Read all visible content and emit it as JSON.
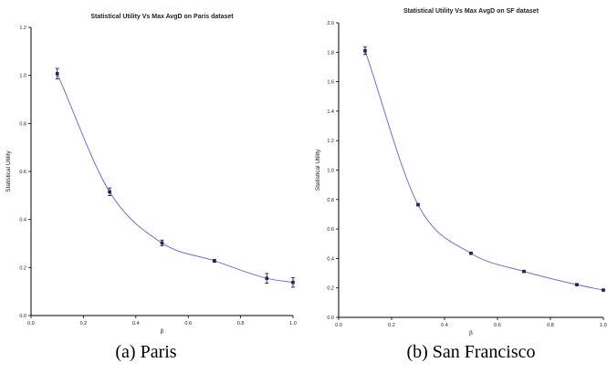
{
  "chart_data": [
    {
      "type": "scatter",
      "title": "Statistical Utility Vs Max AvgD on Paris dataset",
      "xlabel": "β",
      "ylabel": "Statistical Utility",
      "xlim": [
        0,
        1
      ],
      "ylim": [
        0,
        1.2
      ],
      "xticks": [
        0.0,
        0.2,
        0.4,
        0.6,
        0.8,
        1.0
      ],
      "xtick_labels": [
        "0.0",
        "0.2",
        "0.4",
        "0.6",
        "0.8",
        "1.0"
      ],
      "yticks": [
        0.0,
        0.2,
        0.4,
        0.6,
        0.8,
        1.0,
        1.2
      ],
      "ytick_labels": [
        "0.0",
        "0.2",
        "0.4",
        "0.6",
        "0.8",
        "1.0",
        "1.2"
      ],
      "grid": false,
      "legend": "none",
      "caption": "(a) Paris",
      "series": [
        {
          "x": [
            0.1,
            0.3,
            0.5,
            0.7,
            0.9,
            1.0
          ],
          "y": [
            1.007,
            0.515,
            0.302,
            0.228,
            0.155,
            0.138
          ],
          "err": [
            0.022,
            0.016,
            0.012,
            0.006,
            0.02,
            0.02
          ],
          "color": "#2b1f55",
          "fit_color": "#7070cc"
        }
      ]
    },
    {
      "type": "scatter",
      "title": "Statistical Utility Vs Max AvgD on SF dataset",
      "xlabel": "β",
      "ylabel": "Statistical Utility",
      "xlim": [
        0,
        1
      ],
      "ylim": [
        0,
        2
      ],
      "xticks": [
        0.0,
        0.2,
        0.4,
        0.6,
        0.8,
        1.0
      ],
      "xtick_labels": [
        "0.0",
        "0.2",
        "0.4",
        "0.6",
        "0.8",
        "1.0"
      ],
      "yticks": [
        0.0,
        0.2,
        0.4,
        0.6,
        0.8,
        1.0,
        1.2,
        1.4,
        1.6,
        1.8,
        2.0
      ],
      "ytick_labels": [
        "0.0",
        "0.2",
        "0.4",
        "0.6",
        "0.8",
        "1.0",
        "1.2",
        "1.4",
        "1.6",
        "1.8",
        "2.0"
      ],
      "grid": false,
      "legend": "none",
      "caption": "(b) San Francisco",
      "series": [
        {
          "x": [
            0.1,
            0.3,
            0.5,
            0.7,
            0.9,
            1.0
          ],
          "y": [
            1.81,
            0.765,
            0.435,
            0.312,
            0.222,
            0.185
          ],
          "err": [
            0.025,
            0.008,
            0.004,
            0.004,
            0.004,
            0.004
          ],
          "color": "#2b1f55",
          "fit_color": "#7070cc"
        }
      ]
    }
  ]
}
